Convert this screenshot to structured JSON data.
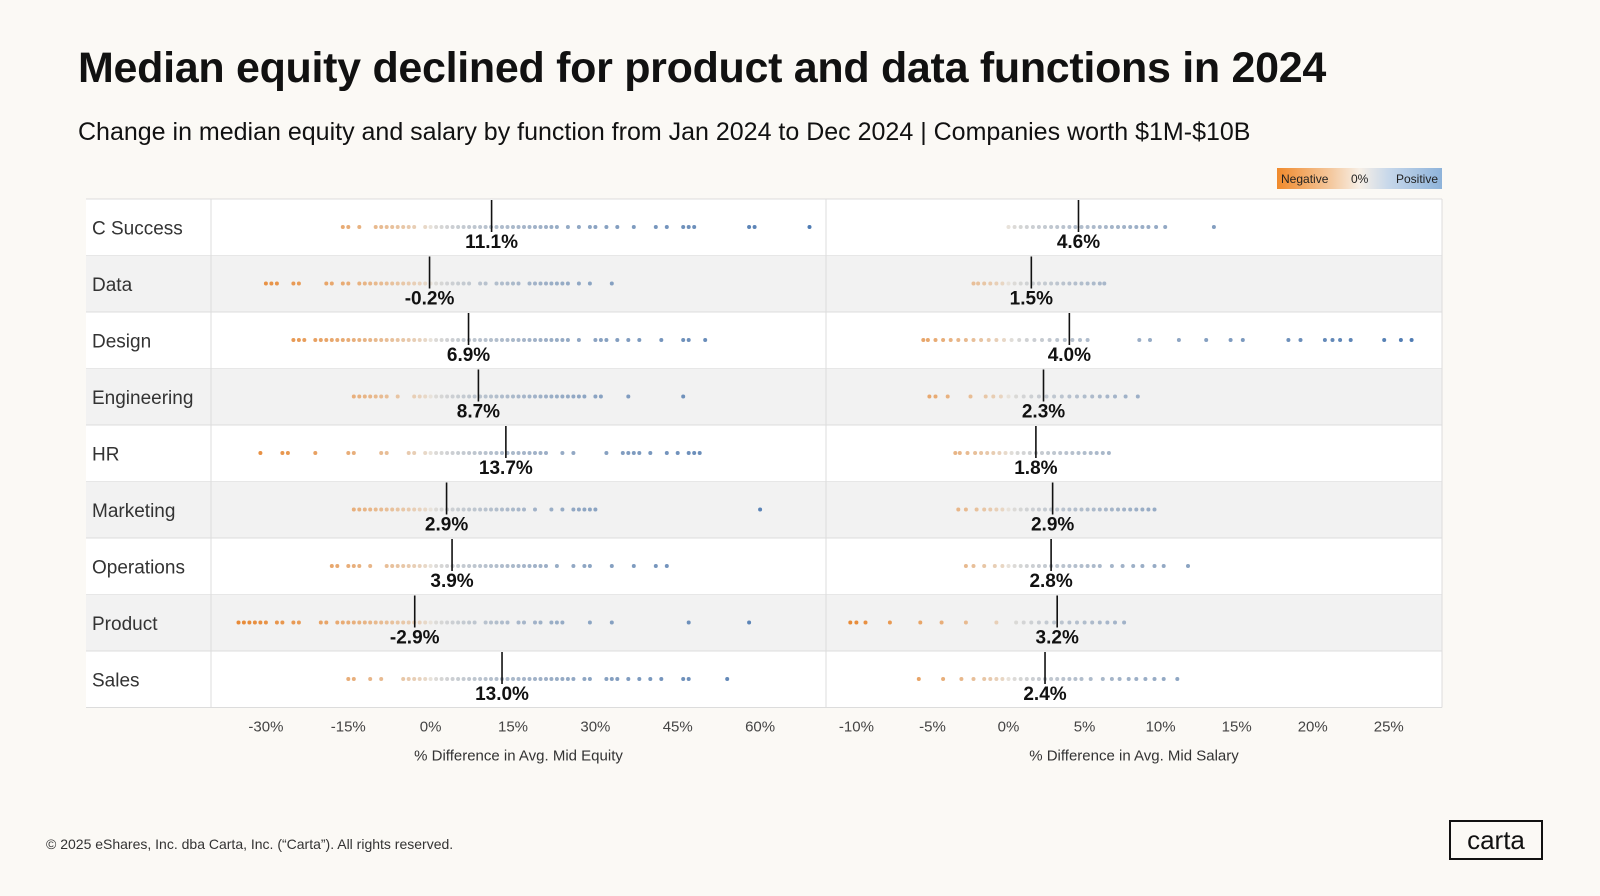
{
  "header": {
    "title": "Median equity declined for product and data functions in 2024",
    "subtitle": "Change in median equity and salary by function from Jan 2024 to Dec 2024 |  Companies worth $1M-$10B"
  },
  "legend": {
    "negative": "Negative",
    "zero": "0%",
    "positive": "Positive"
  },
  "colors": {
    "negative": "#e8832a",
    "positive": "#5b8ac0",
    "median_line": "#111111",
    "band": "#f2f2f2"
  },
  "footer": {
    "copyright": "© 2025 eShares, Inc. dba Carta, Inc. (“Carta”). All rights reserved.",
    "logo": "carta"
  },
  "chart_data": {
    "type": "scatter",
    "categories": [
      "C Success",
      "Data",
      "Design",
      "Engineering",
      "HR",
      "Marketing",
      "Operations",
      "Product",
      "Sales"
    ],
    "panels": [
      {
        "name": "equity",
        "xlabel": "% Difference in Avg. Mid Equity",
        "xlim": [
          -40,
          72
        ],
        "ticks": [
          -30,
          -15,
          0,
          15,
          30,
          45,
          60
        ],
        "tick_labels": [
          "-30%",
          "-15%",
          "0%",
          "15%",
          "30%",
          "45%",
          "60%"
        ],
        "medians": [
          11.1,
          -0.2,
          6.9,
          8.7,
          13.7,
          2.9,
          3.9,
          -2.9,
          13.0
        ],
        "median_labels": [
          "11.1%",
          "-0.2%",
          "6.9%",
          "8.7%",
          "13.7%",
          "2.9%",
          "3.9%",
          "-2.9%",
          "13.0%"
        ],
        "points": [
          [
            -16,
            -15,
            -13,
            -10,
            -9,
            -8,
            -7,
            -6,
            -5,
            -4,
            -3,
            -1,
            0,
            1,
            2,
            3,
            4,
            5,
            6,
            7,
            8,
            9,
            10,
            11,
            12,
            13,
            14,
            15,
            16,
            17,
            18,
            19,
            20,
            21,
            22,
            23,
            25,
            27,
            29,
            30,
            32,
            34,
            37,
            41,
            43,
            46,
            47,
            48,
            58,
            59,
            69
          ],
          [
            -30,
            -29,
            -28,
            -25,
            -24,
            -19,
            -18,
            -16,
            -15,
            -13,
            -12,
            -11,
            -10,
            -9,
            -8,
            -7,
            -6,
            -5,
            -4,
            -3,
            -2,
            -1,
            0,
            1,
            2,
            3,
            4,
            5,
            6,
            7,
            9,
            10,
            12,
            13,
            14,
            15,
            16,
            18,
            19,
            20,
            21,
            22,
            23,
            24,
            25,
            27,
            29,
            33
          ],
          [
            -25,
            -24,
            -23,
            -21,
            -20,
            -19,
            -18,
            -17,
            -16,
            -15,
            -14,
            -13,
            -12,
            -11,
            -10,
            -9,
            -8,
            -7,
            -6,
            -5,
            -4,
            -3,
            -2,
            -1,
            0,
            1,
            2,
            3,
            4,
            5,
            6,
            7,
            8,
            9,
            10,
            11,
            12,
            13,
            14,
            15,
            16,
            17,
            18,
            19,
            20,
            21,
            22,
            23,
            24,
            25,
            27,
            30,
            31,
            32,
            34,
            36,
            38,
            42,
            46,
            47,
            50
          ],
          [
            -14,
            -13,
            -12,
            -11,
            -10,
            -9,
            -8,
            -6,
            -3,
            -2,
            -1,
            0,
            1,
            2,
            3,
            4,
            5,
            6,
            7,
            8,
            9,
            10,
            11,
            12,
            13,
            14,
            15,
            16,
            17,
            18,
            19,
            20,
            21,
            22,
            23,
            24,
            25,
            26,
            27,
            28,
            30,
            31,
            36,
            46
          ],
          [
            -31,
            -27,
            -26,
            -21,
            -15,
            -14,
            -9,
            -8,
            -4,
            -3,
            -1,
            0,
            1,
            2,
            3,
            4,
            5,
            6,
            7,
            8,
            9,
            10,
            11,
            12,
            13,
            14,
            15,
            16,
            17,
            18,
            19,
            20,
            21,
            24,
            26,
            32,
            35,
            36,
            37,
            38,
            40,
            43,
            45,
            47,
            48,
            49
          ],
          [
            -14,
            -13,
            -12,
            -11,
            -10,
            -9,
            -8,
            -7,
            -6,
            -5,
            -4,
            -3,
            -2,
            -1,
            0,
            1,
            2,
            3,
            4,
            5,
            6,
            7,
            8,
            9,
            10,
            11,
            12,
            13,
            14,
            15,
            16,
            17,
            19,
            22,
            24,
            26,
            27,
            28,
            29,
            30,
            60
          ],
          [
            -18,
            -17,
            -15,
            -14,
            -13,
            -11,
            -8,
            -7,
            -6,
            -5,
            -4,
            -3,
            -2,
            -1,
            0,
            1,
            2,
            3,
            4,
            5,
            6,
            7,
            8,
            9,
            10,
            11,
            12,
            13,
            14,
            15,
            16,
            17,
            18,
            19,
            20,
            21,
            23,
            26,
            28,
            29,
            33,
            37,
            41,
            43
          ],
          [
            -35,
            -34,
            -33,
            -32,
            -31,
            -30,
            -28,
            -27,
            -25,
            -24,
            -20,
            -19,
            -17,
            -16,
            -15,
            -14,
            -13,
            -12,
            -11,
            -10,
            -9,
            -8,
            -7,
            -6,
            -5,
            -4,
            -3,
            -2,
            -1,
            0,
            1,
            2,
            3,
            4,
            5,
            6,
            7,
            8,
            10,
            11,
            12,
            13,
            14,
            16,
            17,
            19,
            20,
            22,
            23,
            24,
            29,
            33,
            47,
            58
          ],
          [
            -15,
            -14,
            -11,
            -9,
            -5,
            -4,
            -3,
            -2,
            -1,
            0,
            1,
            2,
            3,
            4,
            5,
            6,
            7,
            8,
            9,
            10,
            11,
            12,
            13,
            14,
            15,
            16,
            17,
            18,
            19,
            20,
            21,
            22,
            23,
            24,
            25,
            26,
            28,
            29,
            32,
            33,
            34,
            36,
            38,
            40,
            42,
            46,
            47,
            54
          ]
        ]
      },
      {
        "name": "salary",
        "xlabel": "% Difference in Avg. Mid Salary",
        "xlim": [
          -12,
          28.5
        ],
        "ticks": [
          -10,
          -5,
          0,
          5,
          10,
          15,
          20,
          25
        ],
        "tick_labels": [
          "-10%",
          "-5%",
          "0%",
          "5%",
          "10%",
          "15%",
          "20%",
          "25%"
        ],
        "medians": [
          4.6,
          1.5,
          4.0,
          2.3,
          1.8,
          2.9,
          2.8,
          3.2,
          2.4
        ],
        "median_labels": [
          "4.6%",
          "1.5%",
          "4.0%",
          "2.3%",
          "1.8%",
          "2.9%",
          "2.8%",
          "3.2%",
          "2.4%"
        ],
        "points": [
          [
            0,
            0.4,
            0.8,
            1.2,
            1.6,
            2,
            2.4,
            2.8,
            3.2,
            3.6,
            4,
            4.4,
            4.8,
            5.2,
            5.6,
            6,
            6.4,
            6.8,
            7.2,
            7.6,
            8,
            8.4,
            8.8,
            9.2,
            9.7,
            10.3,
            13.5
          ],
          [
            -2.3,
            -2,
            -1.6,
            -1.2,
            -0.8,
            -0.4,
            0,
            0.4,
            0.8,
            1.2,
            1.6,
            2,
            2.4,
            2.8,
            3.2,
            3.6,
            4,
            4.4,
            4.8,
            5.2,
            5.6,
            6,
            6.3
          ],
          [
            -5.6,
            -5.3,
            -4.8,
            -4.3,
            -3.8,
            -3.3,
            -2.8,
            -2.3,
            -1.8,
            -1.3,
            -0.8,
            -0.3,
            0.2,
            0.7,
            1.2,
            1.7,
            2.2,
            2.7,
            3.2,
            3.7,
            4.2,
            4.7,
            5.2,
            8.6,
            9.3,
            11.2,
            13,
            14.6,
            15.4,
            18.4,
            19.2,
            20.8,
            21.3,
            21.8,
            22.5,
            24.7,
            25.8,
            26.5
          ],
          [
            -5.2,
            -4.8,
            -4,
            -2.5,
            -1.5,
            -1,
            -0.5,
            0,
            0.5,
            1,
            1.5,
            2,
            2.5,
            3,
            3.5,
            4,
            4.5,
            5,
            5.5,
            6,
            6.5,
            7,
            7.7,
            8.5
          ],
          [
            -3.5,
            -3.2,
            -2.7,
            -2.2,
            -1.8,
            -1.4,
            -1,
            -0.6,
            -0.2,
            0.2,
            0.6,
            1,
            1.4,
            1.8,
            2.2,
            2.6,
            3,
            3.4,
            3.8,
            4.2,
            4.6,
            5,
            5.4,
            5.8,
            6.2,
            6.6
          ],
          [
            -3.3,
            -2.8,
            -2.1,
            -1.6,
            -1.2,
            -0.8,
            -0.4,
            0,
            0.4,
            0.8,
            1.2,
            1.6,
            2,
            2.4,
            2.8,
            3.2,
            3.6,
            4,
            4.4,
            4.8,
            5.2,
            5.6,
            6,
            6.4,
            6.8,
            7.2,
            7.6,
            8,
            8.4,
            8.8,
            9.2,
            9.6
          ],
          [
            -2.8,
            -2.3,
            -1.6,
            -0.9,
            -0.4,
            0,
            0.4,
            0.8,
            1.2,
            1.6,
            2,
            2.4,
            2.8,
            3.2,
            3.6,
            4,
            4.4,
            4.8,
            5.2,
            5.6,
            6,
            6.8,
            7.5,
            8.2,
            8.8,
            9.6,
            10.2,
            11.8
          ],
          [
            -10.4,
            -10,
            -9.4,
            -7.8,
            -5.8,
            -4.4,
            -2.8,
            -0.8,
            0.5,
            1,
            1.5,
            2,
            2.5,
            3,
            3.5,
            4,
            4.5,
            5,
            5.5,
            6,
            6.5,
            7,
            7.6
          ],
          [
            -5.9,
            -4.3,
            -3.1,
            -2.3,
            -1.6,
            -1.2,
            -0.8,
            -0.4,
            0,
            0.4,
            0.8,
            1.2,
            1.6,
            2,
            2.4,
            2.8,
            3.2,
            3.6,
            4,
            4.4,
            4.8,
            5.4,
            6.2,
            6.8,
            7.3,
            7.9,
            8.4,
            9,
            9.6,
            10.2,
            11.1
          ]
        ]
      }
    ]
  }
}
